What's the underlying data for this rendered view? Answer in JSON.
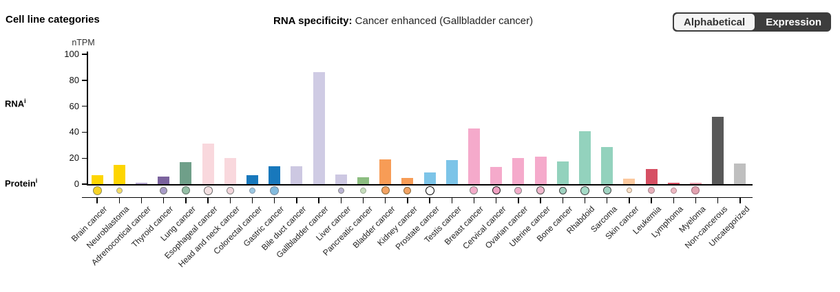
{
  "header": {
    "title": "Cell line categories",
    "rna_specificity_label": "RNA specificity:",
    "rna_specificity_value": "Cancer enhanced (Gallbladder cancer)",
    "toggle": {
      "alphabetical_label": "Alphabetical",
      "expression_label": "Expression",
      "selected": "Expression",
      "dark_color": "#3d3d3d",
      "light_color": "#f4f4f4"
    }
  },
  "axis": {
    "unit": "nTPM",
    "rna_row_label": "RNA",
    "protein_row_label": "Protein",
    "superscript": "i",
    "yticks": [
      0,
      20,
      40,
      60,
      80,
      100
    ]
  },
  "chart_data": {
    "type": "bar",
    "title": "Cell line categories — RNA specificity: Cancer enhanced (Gallbladder cancer)",
    "xlabel": "",
    "ylabel": "nTPM",
    "ylim": [
      0,
      100
    ],
    "grid": false,
    "legend": "none",
    "categories": [
      "Brain cancer",
      "Neuroblastoma",
      "Adrenocortical cancer",
      "Thyroid cancer",
      "Lung cancer",
      "Esophageal cancer",
      "Head and neck cancer",
      "Colorectal cancer",
      "Gastric cancer",
      "Bile duct cancer",
      "Gallbladder cancer",
      "Liver cancer",
      "Pancreatic cancer",
      "Bladder cancer",
      "Kidney cancer",
      "Prostate cancer",
      "Testis cancer",
      "Breast cancer",
      "Cervical cancer",
      "Ovarian cancer",
      "Uterine cancer",
      "Bone cancer",
      "Rhabdoid",
      "Sarcoma",
      "Skin cancer",
      "Leukemia",
      "Lymphoma",
      "Myeloma",
      "Non-cancerous",
      "Uncategorized"
    ],
    "values": [
      7,
      15,
      1,
      6,
      17,
      31,
      20,
      7,
      13.5,
      14,
      86,
      7.5,
      5.5,
      19,
      4.5,
      9,
      18.5,
      43,
      13,
      20,
      21,
      17.5,
      41,
      28.5,
      4,
      11.5,
      1,
      1,
      52,
      16
    ],
    "bar_colors": [
      "#fdd501",
      "#fdd501",
      "#b3a6ce",
      "#7b639e",
      "#6f9f89",
      "#f9d8dd",
      "#f9d8dd",
      "#1878bc",
      "#1878bc",
      "#cdc8e2",
      "#cfcbe4",
      "#cdc8e2",
      "#8cbd80",
      "#f79c56",
      "#f79c56",
      "#7cc4e8",
      "#7cc4e8",
      "#f5aacb",
      "#f5aacb",
      "#f5aacb",
      "#f5aacb",
      "#93d2bd",
      "#93d2bd",
      "#93d2bd",
      "#fbc99e",
      "#d64f63",
      "#d64f63",
      "#e8a2b0",
      "#595959",
      "#bfbfbf"
    ],
    "protein_circles": [
      {
        "size": 13,
        "fill": "#f7d325",
        "border": "#8a8a5a"
      },
      {
        "size": 9,
        "fill": "#f2dc62",
        "border": "#999999"
      },
      null,
      {
        "size": 11,
        "fill": "#a89cc8",
        "border": "#777777"
      },
      {
        "size": 12,
        "fill": "#95bfa6",
        "border": "#66796d"
      },
      {
        "size": 13,
        "fill": "#f4e0e2",
        "border": "#666666"
      },
      {
        "size": 11,
        "fill": "#f2d4da",
        "border": "#888888"
      },
      {
        "size": 9,
        "fill": "#9ac7e2",
        "border": "#8899aa"
      },
      {
        "size": 13,
        "fill": "#83bbde",
        "border": "#778899"
      },
      null,
      null,
      {
        "size": 9,
        "fill": "#b9b3d3",
        "border": "#888888"
      },
      {
        "size": 9,
        "fill": "#c5dcbc",
        "border": "#99aa91"
      },
      {
        "size": 12,
        "fill": "#f2a263",
        "border": "#8a6a3a"
      },
      {
        "size": 11,
        "fill": "#f2a263",
        "border": "#8a6a3a"
      },
      {
        "size": 13,
        "fill": "#ffffff",
        "border": "#000000"
      },
      null,
      {
        "size": 12,
        "fill": "#f2aac8",
        "border": "#888888"
      },
      {
        "size": 12,
        "fill": "#f0a0c2",
        "border": "#222222"
      },
      {
        "size": 11,
        "fill": "#f2aac8",
        "border": "#888888"
      },
      {
        "size": 12,
        "fill": "#f0b6cc",
        "border": "#555555"
      },
      {
        "size": 11,
        "fill": "#9ed2c0",
        "border": "#444444"
      },
      {
        "size": 13,
        "fill": "#a5dac7",
        "border": "#444444"
      },
      {
        "size": 12,
        "fill": "#a0d4c2",
        "border": "#444444"
      },
      {
        "size": 8,
        "fill": "#f8dfc8",
        "border": "#b09a80"
      },
      {
        "size": 10,
        "fill": "#e7aeb9",
        "border": "#a08088"
      },
      {
        "size": 9,
        "fill": "#edb9c3",
        "border": "#b08890"
      },
      {
        "size": 12,
        "fill": "#e2a2b0",
        "border": "#a0707e"
      },
      null,
      null
    ]
  }
}
